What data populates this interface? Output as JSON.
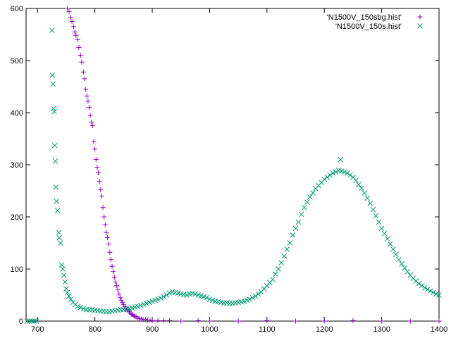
{
  "chart_data": {
    "type": "scatter",
    "title": "",
    "xlabel": "",
    "ylabel": "",
    "xlim": [
      680,
      1400
    ],
    "ylim": [
      0,
      600
    ],
    "grid": false,
    "legend_position": "top-right",
    "x_ticks": [
      700,
      800,
      900,
      1000,
      1100,
      1200,
      1300,
      1400
    ],
    "y_ticks": [
      0,
      100,
      200,
      300,
      400,
      500,
      600
    ],
    "series": [
      {
        "name": "'N1500V_150sbg.hist'",
        "marker": "plus",
        "color": "#9400d3",
        "points": [
          [
            752,
            600
          ],
          [
            755,
            594
          ],
          [
            758,
            583
          ],
          [
            760,
            575
          ],
          [
            763,
            565
          ],
          [
            765,
            555
          ],
          [
            767,
            548
          ],
          [
            770,
            540
          ],
          [
            772,
            525
          ],
          [
            775,
            510
          ],
          [
            777,
            497
          ],
          [
            780,
            478
          ],
          [
            782,
            465
          ],
          [
            784,
            445
          ],
          [
            786,
            432
          ],
          [
            788,
            422
          ],
          [
            790,
            410
          ],
          [
            792,
            395
          ],
          [
            794,
            382
          ],
          [
            796,
            375
          ],
          [
            798,
            345
          ],
          [
            800,
            330
          ],
          [
            802,
            310
          ],
          [
            804,
            295
          ],
          [
            806,
            285
          ],
          [
            808,
            268
          ],
          [
            810,
            252
          ],
          [
            812,
            240
          ],
          [
            814,
            218
          ],
          [
            816,
            200
          ],
          [
            818,
            185
          ],
          [
            820,
            170
          ],
          [
            822,
            160
          ],
          [
            824,
            148
          ],
          [
            826,
            132
          ],
          [
            828,
            118
          ],
          [
            830,
            105
          ],
          [
            832,
            95
          ],
          [
            834,
            84
          ],
          [
            836,
            75
          ],
          [
            838,
            68
          ],
          [
            840,
            60
          ],
          [
            842,
            52
          ],
          [
            844,
            45
          ],
          [
            846,
            40
          ],
          [
            848,
            36
          ],
          [
            850,
            32
          ],
          [
            852,
            28
          ],
          [
            854,
            25
          ],
          [
            856,
            22
          ],
          [
            858,
            20
          ],
          [
            860,
            18
          ],
          [
            862,
            15
          ],
          [
            864,
            13
          ],
          [
            866,
            12
          ],
          [
            868,
            10
          ],
          [
            870,
            9
          ],
          [
            872,
            8
          ],
          [
            875,
            6
          ],
          [
            878,
            5
          ],
          [
            881,
            4
          ],
          [
            884,
            3
          ],
          [
            888,
            3
          ],
          [
            892,
            2
          ],
          [
            896,
            2
          ],
          [
            900,
            1
          ],
          [
            910,
            1
          ],
          [
            920,
            1
          ],
          [
            930,
            1
          ],
          [
            950,
            0
          ],
          [
            980,
            1
          ],
          [
            1000,
            0
          ],
          [
            1050,
            0
          ],
          [
            1100,
            1
          ],
          [
            1150,
            0
          ],
          [
            1200,
            0
          ],
          [
            1250,
            1
          ],
          [
            1300,
            0
          ],
          [
            1350,
            0
          ],
          [
            1400,
            0
          ]
        ]
      },
      {
        "name": "'N1500V_150s.hist'",
        "marker": "cross",
        "color": "#009e73",
        "points": [
          [
            682,
            0
          ],
          [
            686,
            0
          ],
          [
            690,
            0
          ],
          [
            694,
            0
          ],
          [
            698,
            0
          ],
          [
            725,
            558
          ],
          [
            726,
            472
          ],
          [
            727,
            455
          ],
          [
            728,
            408
          ],
          [
            729,
            402
          ],
          [
            730,
            337
          ],
          [
            731,
            307
          ],
          [
            732,
            257
          ],
          [
            733,
            230
          ],
          [
            735,
            212
          ],
          [
            737,
            170
          ],
          [
            738,
            160
          ],
          [
            740,
            150
          ],
          [
            742,
            108
          ],
          [
            744,
            100
          ],
          [
            746,
            88
          ],
          [
            748,
            75
          ],
          [
            750,
            62
          ],
          [
            752,
            55
          ],
          [
            755,
            48
          ],
          [
            758,
            42
          ],
          [
            762,
            36
          ],
          [
            766,
            32
          ],
          [
            770,
            28
          ],
          [
            775,
            26
          ],
          [
            780,
            24
          ],
          [
            785,
            22
          ],
          [
            790,
            22
          ],
          [
            795,
            22
          ],
          [
            800,
            21
          ],
          [
            805,
            20
          ],
          [
            810,
            19
          ],
          [
            815,
            19
          ],
          [
            820,
            18
          ],
          [
            825,
            18
          ],
          [
            830,
            19
          ],
          [
            835,
            20
          ],
          [
            840,
            21
          ],
          [
            845,
            22
          ],
          [
            850,
            22
          ],
          [
            855,
            23
          ],
          [
            860,
            24
          ],
          [
            865,
            25
          ],
          [
            870,
            27
          ],
          [
            875,
            28
          ],
          [
            880,
            30
          ],
          [
            885,
            32
          ],
          [
            890,
            34
          ],
          [
            895,
            36
          ],
          [
            900,
            38
          ],
          [
            905,
            40
          ],
          [
            910,
            42
          ],
          [
            915,
            44
          ],
          [
            920,
            47
          ],
          [
            925,
            50
          ],
          [
            930,
            54
          ],
          [
            935,
            56
          ],
          [
            940,
            55
          ],
          [
            945,
            54
          ],
          [
            950,
            52
          ],
          [
            955,
            51
          ],
          [
            960,
            50
          ],
          [
            965,
            52
          ],
          [
            970,
            53
          ],
          [
            975,
            52
          ],
          [
            980,
            50
          ],
          [
            985,
            49
          ],
          [
            990,
            47
          ],
          [
            995,
            45
          ],
          [
            1000,
            42
          ],
          [
            1005,
            40
          ],
          [
            1010,
            38
          ],
          [
            1015,
            37
          ],
          [
            1020,
            36
          ],
          [
            1025,
            35
          ],
          [
            1030,
            35
          ],
          [
            1035,
            34
          ],
          [
            1040,
            34
          ],
          [
            1045,
            35
          ],
          [
            1050,
            36
          ],
          [
            1055,
            37
          ],
          [
            1060,
            38
          ],
          [
            1065,
            40
          ],
          [
            1070,
            42
          ],
          [
            1075,
            45
          ],
          [
            1080,
            48
          ],
          [
            1085,
            52
          ],
          [
            1090,
            56
          ],
          [
            1095,
            62
          ],
          [
            1100,
            68
          ],
          [
            1105,
            74
          ],
          [
            1110,
            80
          ],
          [
            1115,
            90
          ],
          [
            1120,
            100
          ],
          [
            1125,
            112
          ],
          [
            1130,
            125
          ],
          [
            1135,
            138
          ],
          [
            1140,
            150
          ],
          [
            1145,
            165
          ],
          [
            1150,
            178
          ],
          [
            1155,
            190
          ],
          [
            1160,
            205
          ],
          [
            1165,
            218
          ],
          [
            1170,
            228
          ],
          [
            1175,
            238
          ],
          [
            1180,
            246
          ],
          [
            1185,
            254
          ],
          [
            1190,
            260
          ],
          [
            1195,
            266
          ],
          [
            1200,
            272
          ],
          [
            1205,
            276
          ],
          [
            1210,
            280
          ],
          [
            1215,
            284
          ],
          [
            1220,
            286
          ],
          [
            1225,
            289
          ],
          [
            1228,
            310
          ],
          [
            1230,
            288
          ],
          [
            1235,
            286
          ],
          [
            1240,
            284
          ],
          [
            1245,
            280
          ],
          [
            1250,
            276
          ],
          [
            1255,
            270
          ],
          [
            1260,
            262
          ],
          [
            1265,
            255
          ],
          [
            1270,
            246
          ],
          [
            1275,
            236
          ],
          [
            1280,
            226
          ],
          [
            1285,
            214
          ],
          [
            1290,
            202
          ],
          [
            1295,
            190
          ],
          [
            1300,
            178
          ],
          [
            1305,
            168
          ],
          [
            1310,
            158
          ],
          [
            1315,
            148
          ],
          [
            1320,
            138
          ],
          [
            1325,
            128
          ],
          [
            1330,
            118
          ],
          [
            1335,
            110
          ],
          [
            1340,
            102
          ],
          [
            1345,
            95
          ],
          [
            1350,
            88
          ],
          [
            1355,
            82
          ],
          [
            1360,
            77
          ],
          [
            1365,
            72
          ],
          [
            1370,
            68
          ],
          [
            1375,
            64
          ],
          [
            1380,
            61
          ],
          [
            1385,
            58
          ],
          [
            1390,
            55
          ],
          [
            1395,
            52
          ],
          [
            1400,
            50
          ]
        ]
      }
    ]
  }
}
